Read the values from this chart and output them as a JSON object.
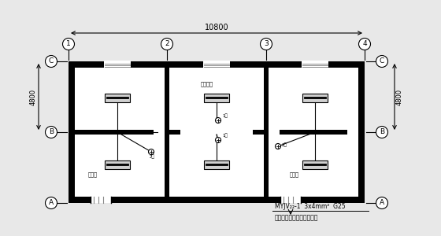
{
  "bg": "#e8e8e8",
  "annotation1": "MYJV₂₂-1  3x4mm²  G25",
  "annotation2": "电源引自门卫室照明配电筱",
  "room_left": "洗涤间",
  "room_top_center": "洗备材室",
  "room_right": "空洗间",
  "dim_h": "10800",
  "dim_v": "4800",
  "col_labels": [
    "1",
    "2",
    "3",
    "4"
  ],
  "row_labels": [
    "C",
    "B",
    "A"
  ],
  "lbl_1lu_1": "1路",
  "lbl_1lu_2": "1路",
  "lbl_2mi_1": "2米",
  "lbl_2mi_2": "2米"
}
